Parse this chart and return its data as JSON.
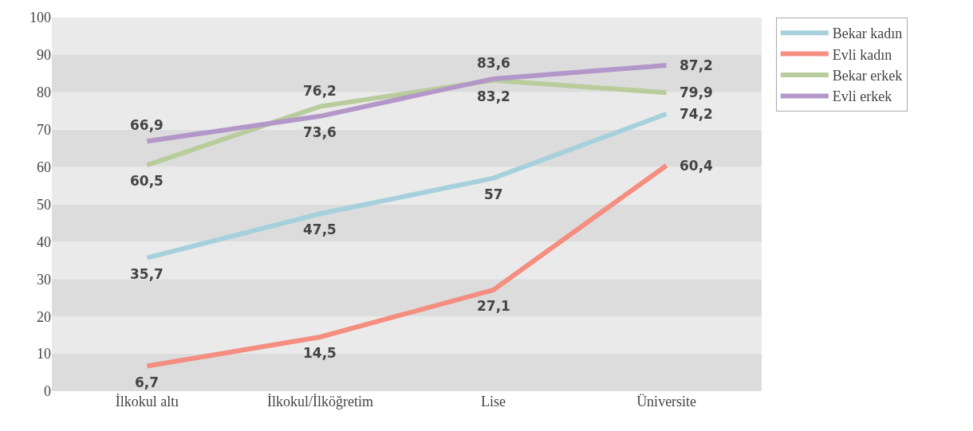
{
  "chart_data": {
    "type": "line",
    "categories": [
      "İlkokul altı",
      "İlkokul/İlköğretim",
      "Lise",
      "Üniversite"
    ],
    "series": [
      {
        "name": "Bekar kadın",
        "color": "#a6d1dc",
        "values": [
          35.7,
          47.5,
          57,
          74.2
        ],
        "value_labels": [
          "35,7",
          "47,5",
          "57",
          "74,2"
        ]
      },
      {
        "name": "Evli kadın",
        "color": "#f48e80",
        "values": [
          6.7,
          14.5,
          27.1,
          60.4
        ],
        "value_labels": [
          "6,7",
          "14,5",
          "27,1",
          "60,4"
        ]
      },
      {
        "name": "Bekar erkek",
        "color": "#b9cc9c",
        "values": [
          60.5,
          76.2,
          83.2,
          79.9
        ],
        "value_labels": [
          "60,5",
          "76,2",
          "83,2",
          "79,9"
        ]
      },
      {
        "name": "Evli erkek",
        "color": "#b497c9",
        "values": [
          66.9,
          73.6,
          83.6,
          87.2
        ],
        "value_labels": [
          "66,9",
          "73,6",
          "83,6",
          "87,2"
        ]
      }
    ],
    "ylim": [
      0,
      100
    ],
    "yticks": [
      0,
      10,
      20,
      30,
      40,
      50,
      60,
      70,
      80,
      90,
      100
    ],
    "bands": [
      {
        "axis": "y",
        "from": 0,
        "to": 10,
        "color": "#dcdcdc"
      },
      {
        "axis": "y",
        "from": 10,
        "to": 20,
        "color": "#eaeaea"
      },
      {
        "axis": "y",
        "from": 20,
        "to": 30,
        "color": "#dcdcdc"
      },
      {
        "axis": "y",
        "from": 30,
        "to": 40,
        "color": "#eaeaea"
      },
      {
        "axis": "y",
        "from": 40,
        "to": 50,
        "color": "#dcdcdc"
      },
      {
        "axis": "y",
        "from": 50,
        "to": 60,
        "color": "#eaeaea"
      },
      {
        "axis": "y",
        "from": 60,
        "to": 70,
        "color": "#dcdcdc"
      },
      {
        "axis": "y",
        "from": 70,
        "to": 80,
        "color": "#eaeaea"
      },
      {
        "axis": "y",
        "from": 80,
        "to": 90,
        "color": "#dcdcdc"
      },
      {
        "axis": "y",
        "from": 90,
        "to": 100,
        "color": "#eaeaea"
      }
    ],
    "grid": false,
    "legend": "top right",
    "marker": "none",
    "line_style": "solid"
  }
}
